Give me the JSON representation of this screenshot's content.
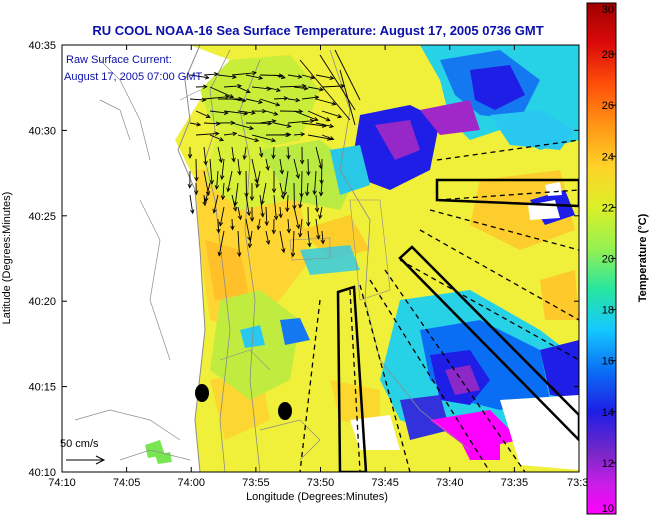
{
  "chart_data": {
    "type": "heatmap",
    "title": "RU COOL  NOAA-16  Sea Surface Temperature:  August 17, 2005 0736 GMT",
    "xlabel": "Longitude (Degrees:Minutes)",
    "ylabel": "Latitude (Degrees:Minutes)",
    "x_ticks": [
      "74:10",
      "74:05",
      "74:00",
      "73:55",
      "73:50",
      "73:45",
      "73:40",
      "73:35",
      "73:3"
    ],
    "y_ticks": [
      "40:35",
      "40:30",
      "40:25",
      "40:20",
      "40:15",
      "40:10"
    ],
    "xlim_minutes_west": [
      70,
      30
    ],
    "ylim_minutes_north": [
      10,
      35
    ],
    "colorbar": {
      "label": "Temperature (°C)",
      "ticks": [
        30,
        28,
        26,
        24,
        22,
        20,
        18,
        16,
        14,
        12,
        10
      ],
      "range": [
        10,
        30
      ],
      "colors": [
        "#ff00ff",
        "#9a28c8",
        "#1e1ee6",
        "#0a6ef5",
        "#14c8ff",
        "#28e6a0",
        "#96f050",
        "#dcf028",
        "#ffd228",
        "#ff9614",
        "#ff500a",
        "#dc0a0a",
        "#a00000"
      ]
    },
    "annotations": {
      "current_title": "Raw Surface Current:",
      "current_time": "August 17, 2005 07:00 GMT",
      "scale_label": "50 cm/s"
    },
    "grid": false
  }
}
